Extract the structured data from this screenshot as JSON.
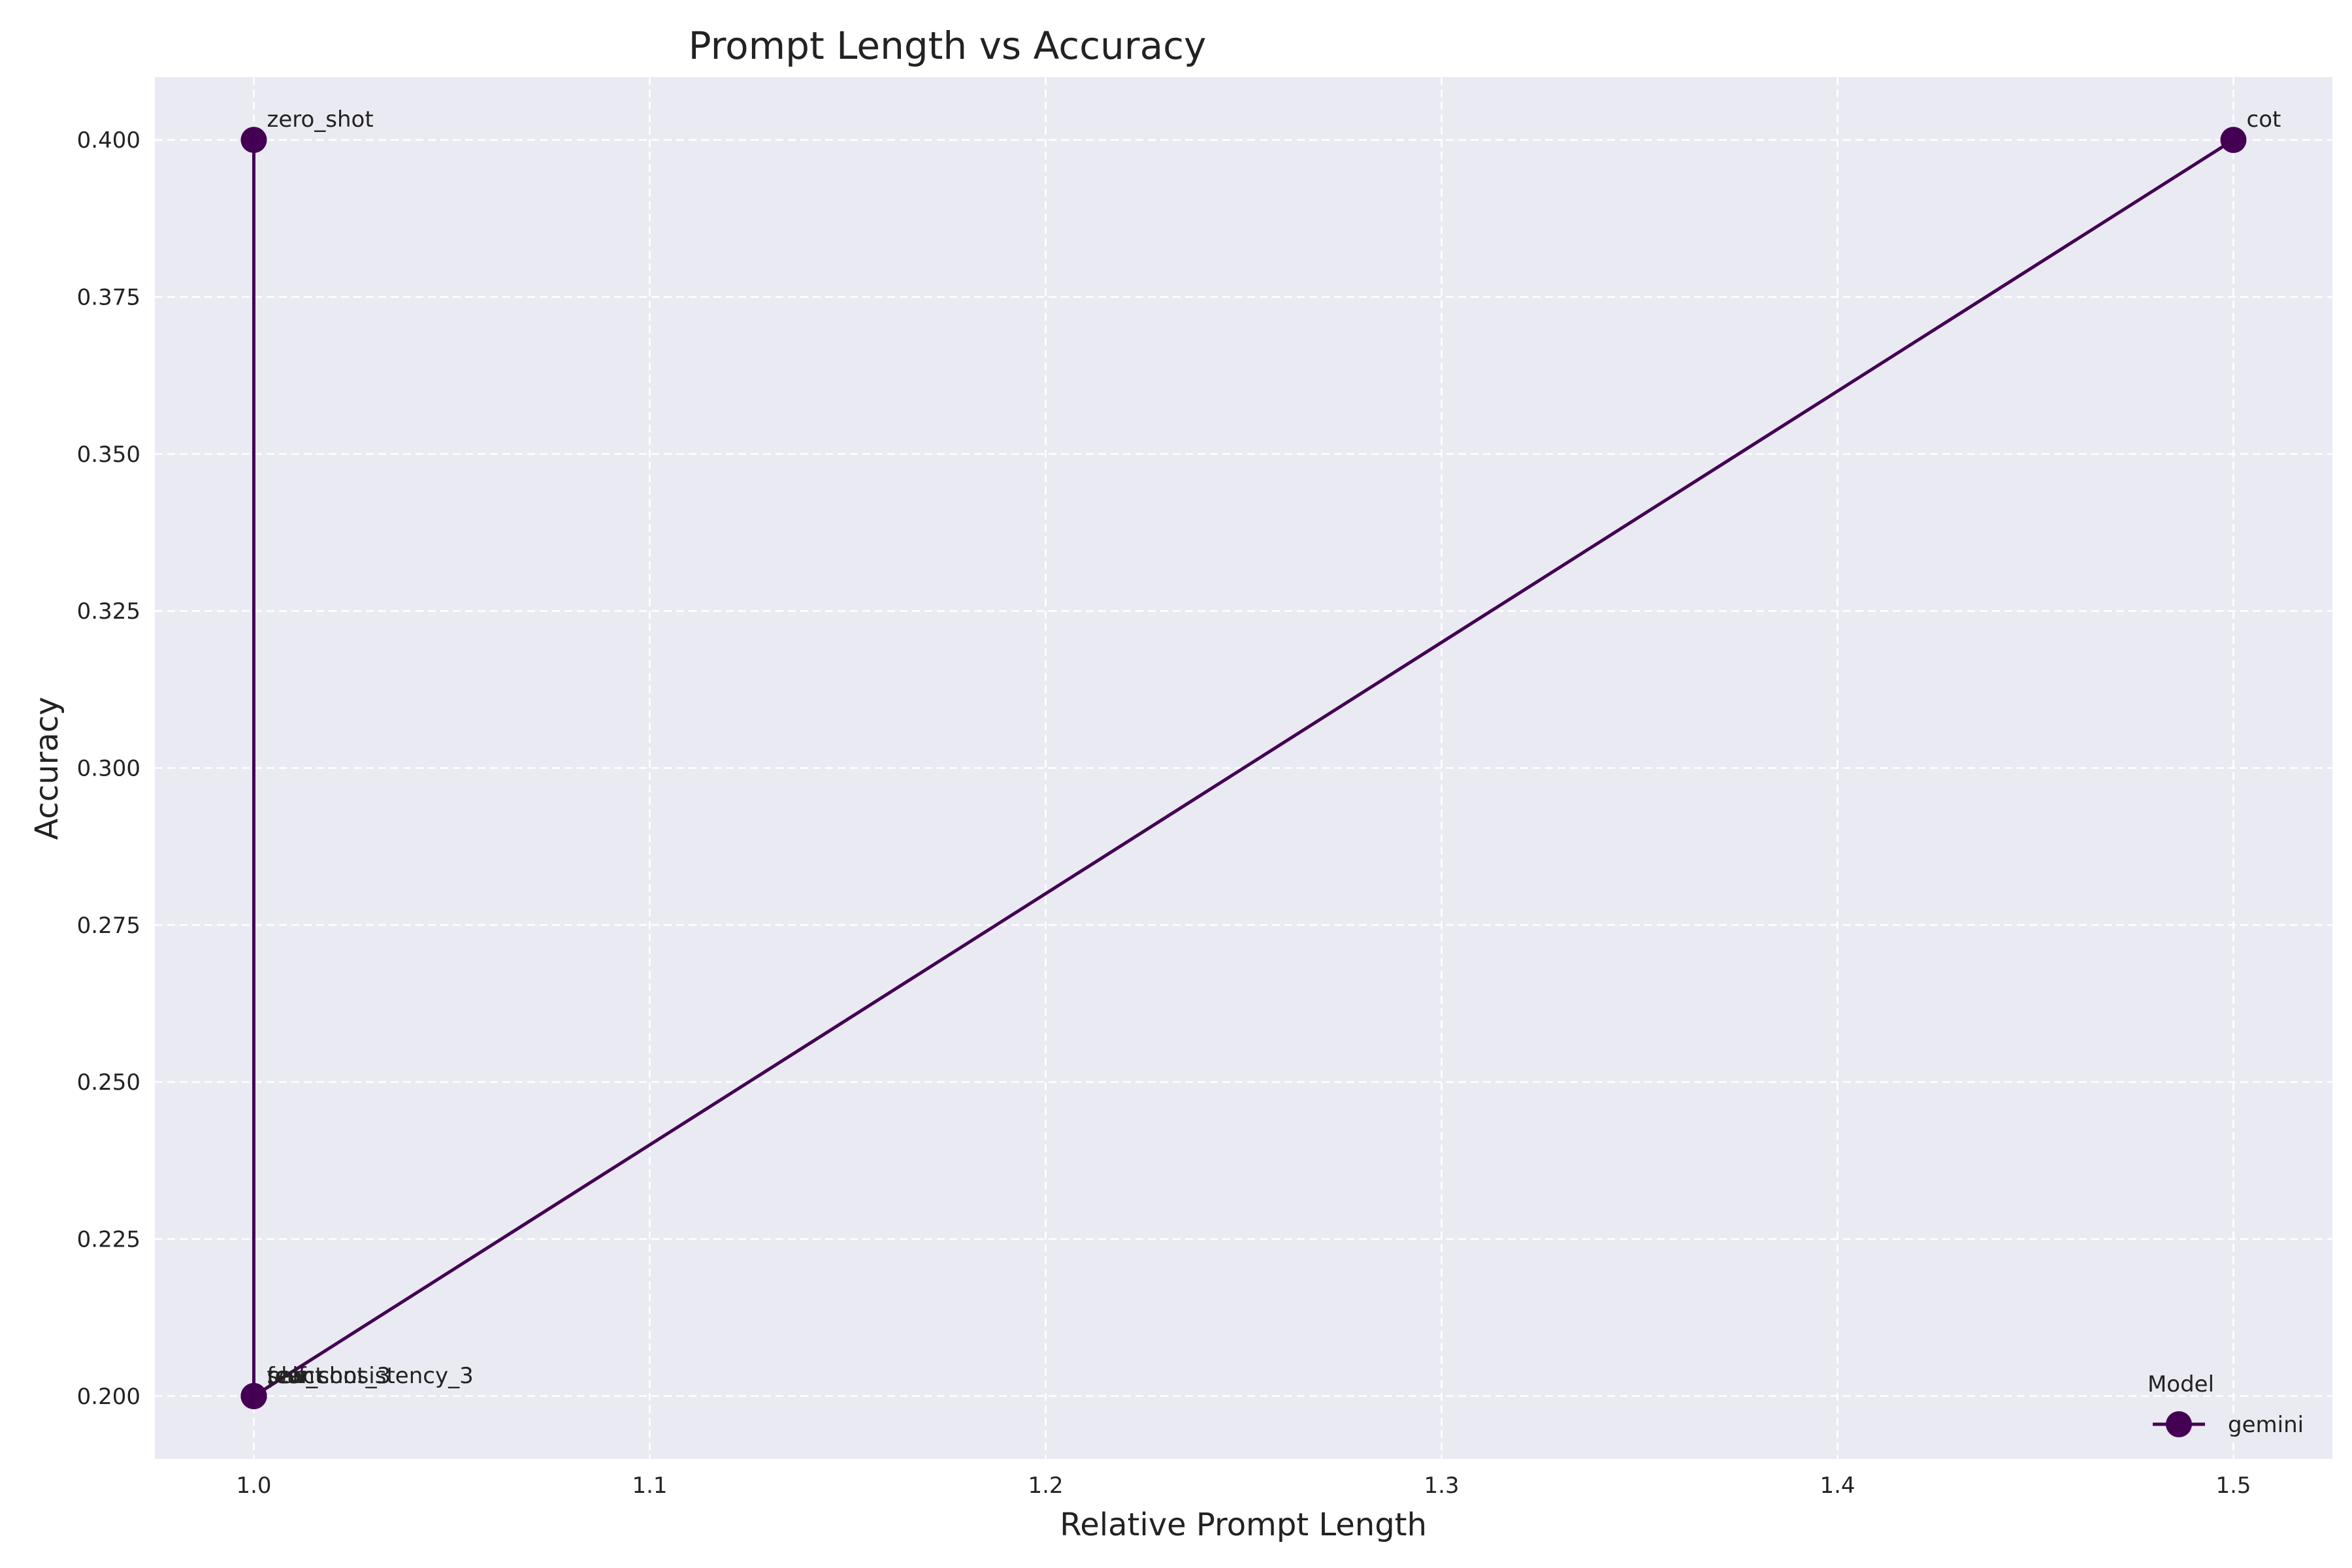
{
  "chart_data": {
    "type": "line",
    "title": "Prompt Length vs Accuracy",
    "xlabel": "Relative Prompt Length",
    "ylabel": "Accuracy",
    "xlim": [
      0.975,
      1.525
    ],
    "ylim": [
      0.19,
      0.41
    ],
    "xticks": [
      "1.0",
      "1.1",
      "1.2",
      "1.3",
      "1.4",
      "1.5"
    ],
    "yticks": [
      "0.200",
      "0.225",
      "0.250",
      "0.275",
      "0.300",
      "0.325",
      "0.350",
      "0.375",
      "0.400"
    ],
    "grid": true,
    "legend": {
      "title": "Model",
      "placement": "lower-right"
    },
    "series": [
      {
        "name": "gemini",
        "color": "#440154",
        "points": [
          {
            "x": 1.0,
            "y": 0.4,
            "label": "zero_shot"
          },
          {
            "x": 1.0,
            "y": 0.2,
            "label": "few_shot_3"
          },
          {
            "x": 1.0,
            "y": 0.2,
            "label": "react"
          },
          {
            "x": 1.0,
            "y": 0.2,
            "label": "self_consistency_3"
          },
          {
            "x": 1.0,
            "y": 0.2,
            "label": "plan"
          },
          {
            "x": 1.5,
            "y": 0.4,
            "label": "cot"
          }
        ]
      }
    ]
  },
  "colors": {
    "plot_background": "#eaeaf2",
    "grid": "#ffffff"
  }
}
